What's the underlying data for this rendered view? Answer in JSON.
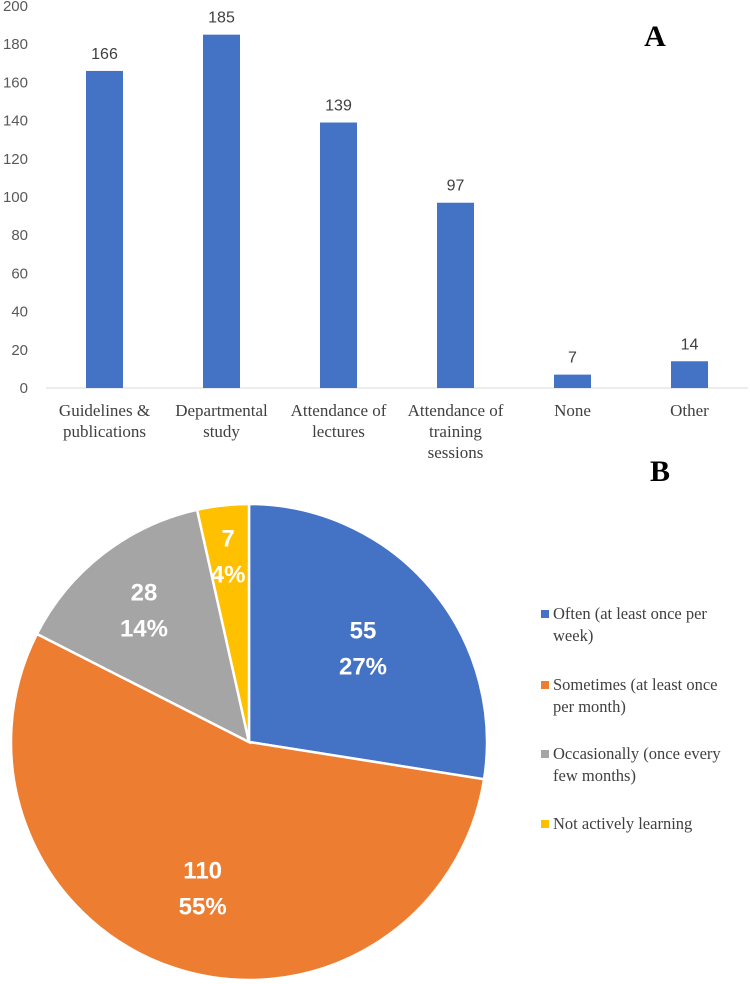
{
  "chart_data": [
    {
      "type": "bar",
      "panel_label": "A",
      "categories": [
        [
          "Guidelines &",
          "publications"
        ],
        [
          "Departmental",
          "study"
        ],
        [
          "Attendance of",
          "lectures"
        ],
        [
          "Attendance of",
          "training",
          "sessions"
        ],
        [
          "None"
        ],
        [
          "Other"
        ]
      ],
      "values": [
        166,
        185,
        139,
        97,
        7,
        14
      ],
      "ylim": [
        0,
        200
      ],
      "yticks": [
        0,
        20,
        40,
        60,
        80,
        100,
        120,
        140,
        160,
        180,
        200
      ],
      "color": "#4472C4",
      "grid": false
    },
    {
      "type": "pie",
      "panel_label": "B",
      "slices": [
        {
          "label": "Often (at least once per week)",
          "legend_lines": [
            "Often (at least once per",
            "week)"
          ],
          "value": 55,
          "percent": "27%",
          "color": "#4472C4"
        },
        {
          "label": "Sometimes (at least once per month)",
          "legend_lines": [
            "Sometimes (at least once",
            "per month)"
          ],
          "value": 110,
          "percent": "55%",
          "color": "#ED7D31"
        },
        {
          "label": "Occasionally (once every few months)",
          "legend_lines": [
            "Occasionally (once every",
            "few months)"
          ],
          "value": 28,
          "percent": "14%",
          "color": "#A5A5A5"
        },
        {
          "label": "Not actively learning",
          "legend_lines": [
            "Not actively learning"
          ],
          "value": 7,
          "percent": "4%",
          "color": "#FFC000"
        }
      ],
      "legend_position": "right"
    }
  ]
}
